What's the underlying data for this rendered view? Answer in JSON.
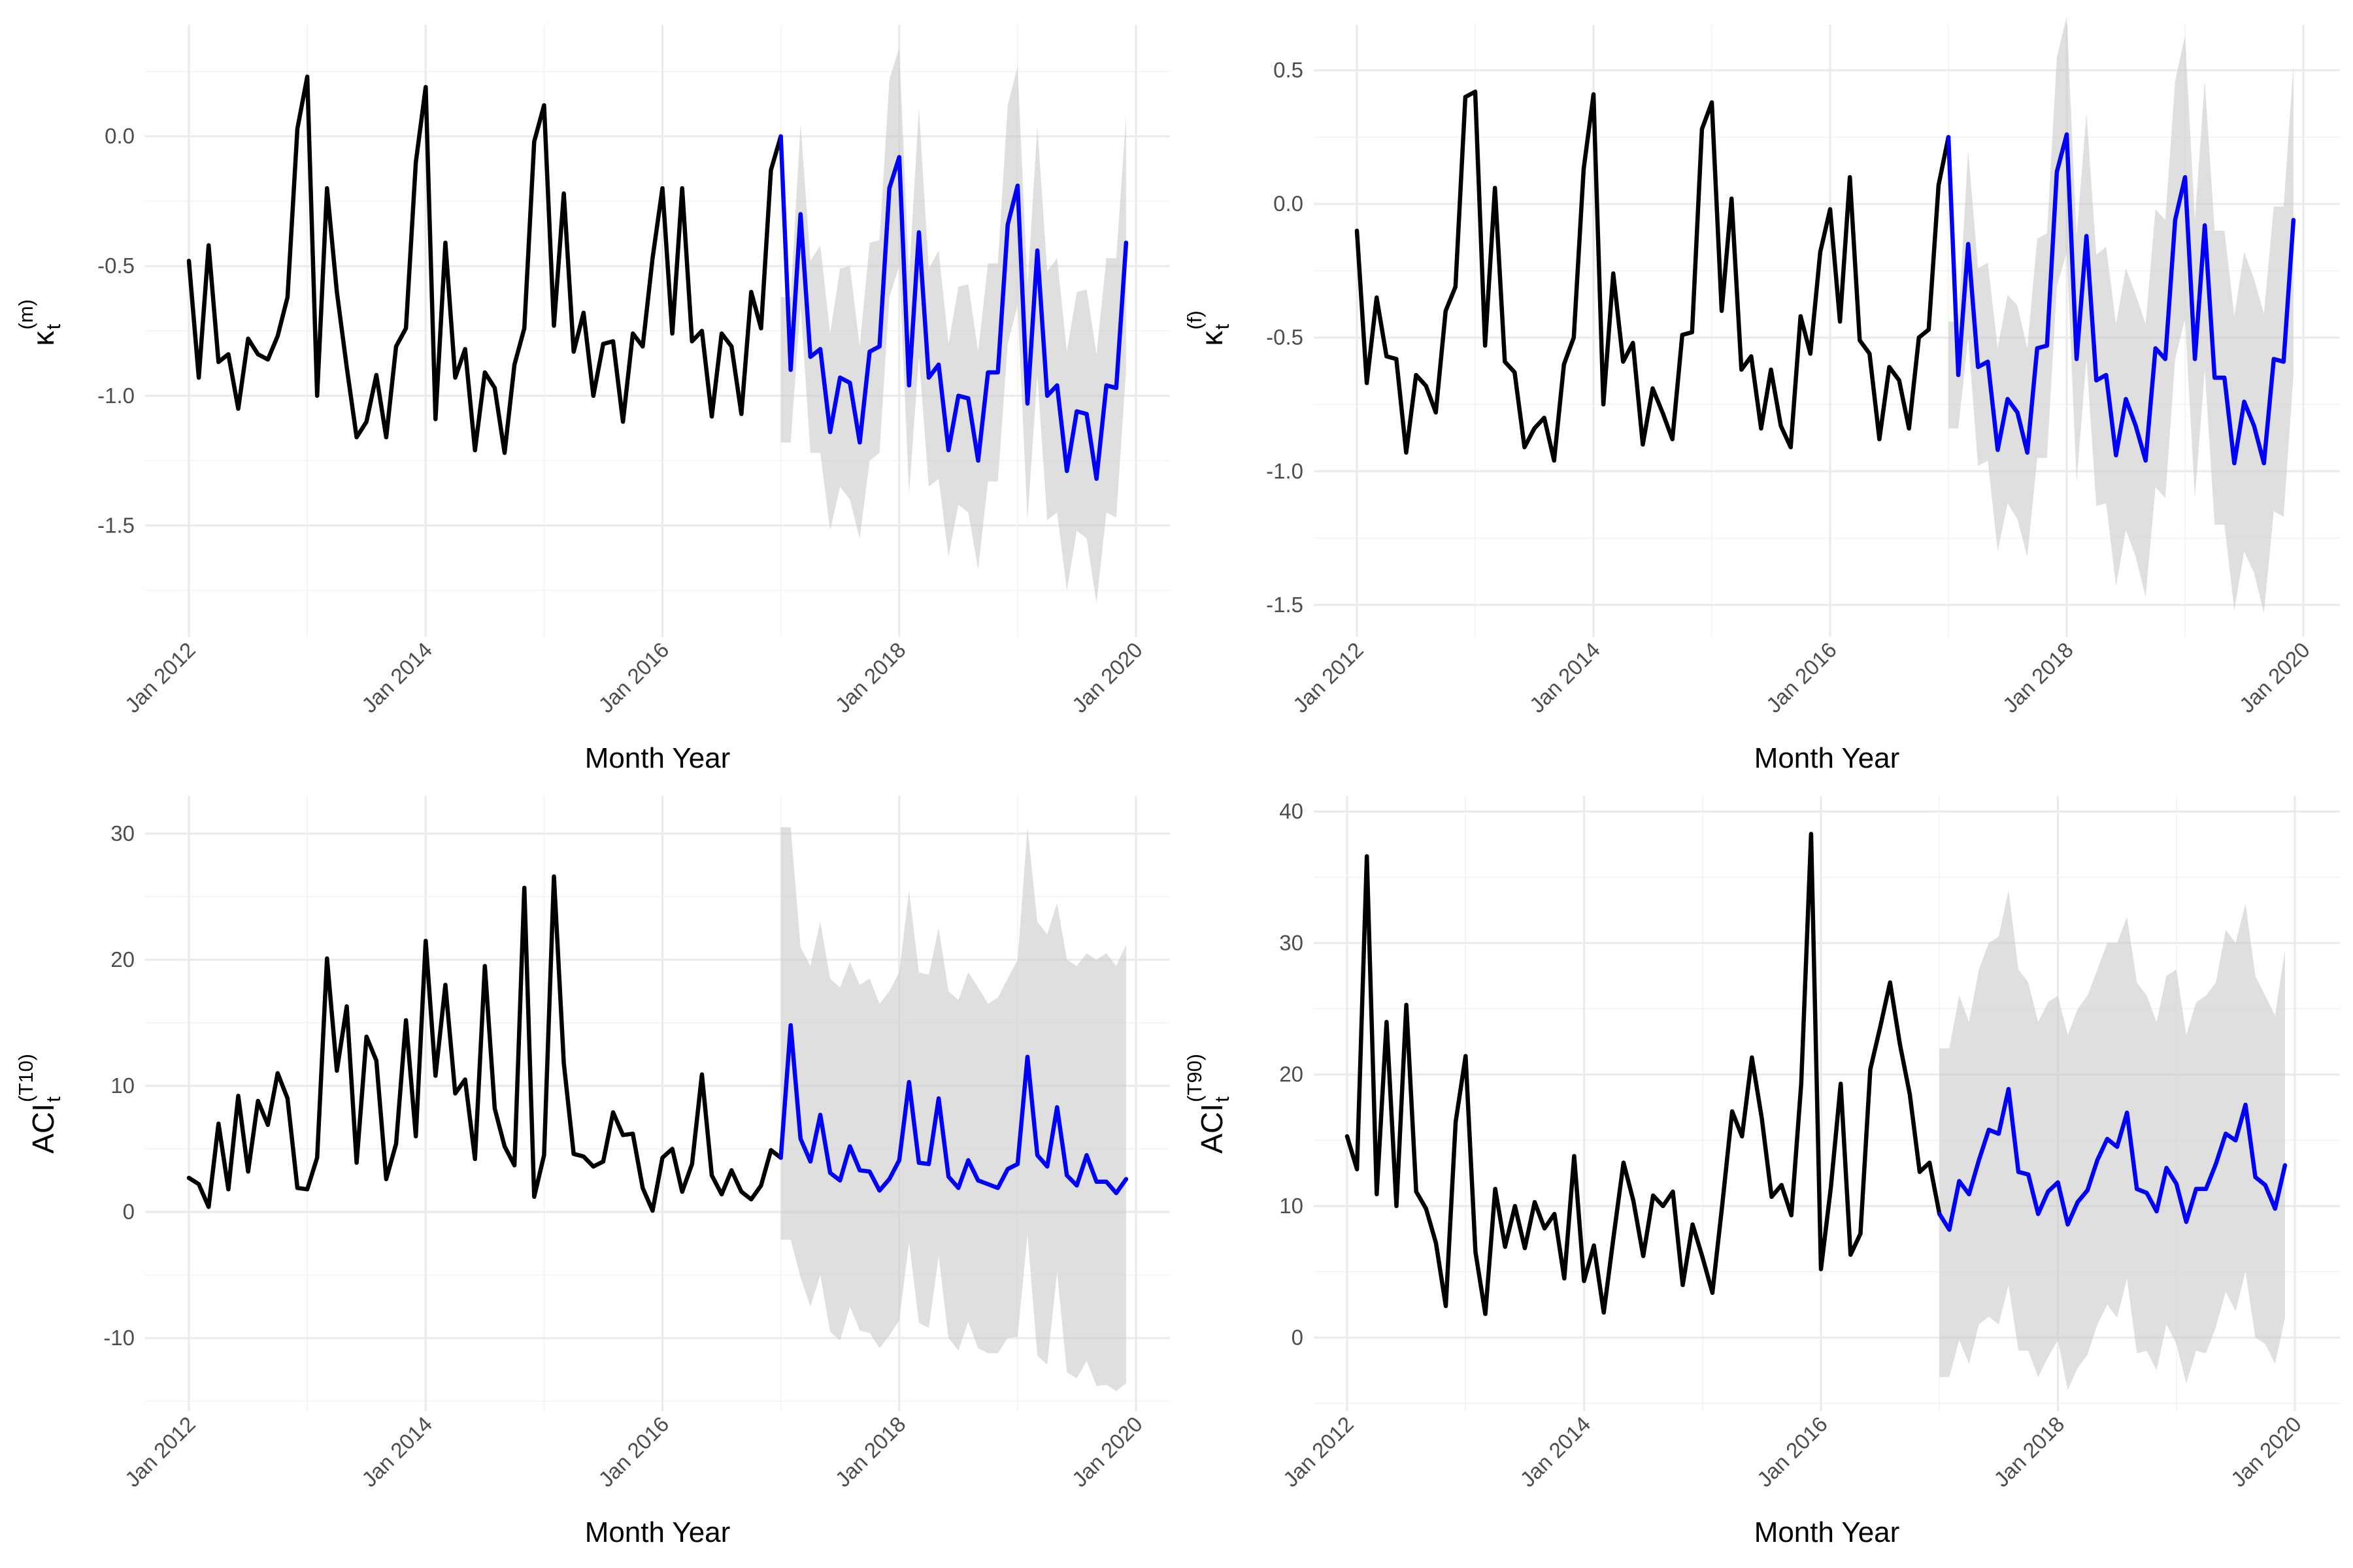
{
  "colors": {
    "history": "#000000",
    "forecast": "#0000ff",
    "ribbon": "#c9c9c9",
    "grid": "#ebebeb",
    "text": "#4d4d4d"
  },
  "chart_data": [
    {
      "type": "line",
      "id": "kappa_m",
      "xlabel": "Month Year",
      "ylabel": {
        "base": "κ",
        "sub": "t",
        "sup": "(m)"
      },
      "ylim": [
        -1.93,
        0.43
      ],
      "yticks": [
        -1.5,
        -1.0,
        -0.5,
        0.0
      ],
      "ytick_labels": [
        "-1.5",
        "-1.0",
        "-0.5",
        "0.0"
      ],
      "xticks": [
        "Jan 2012",
        "Jan 2014",
        "Jan 2016",
        "Jan 2018",
        "Jan 2020"
      ],
      "start": "2012-01",
      "history": [
        -0.48,
        -0.93,
        -0.42,
        -0.87,
        -0.84,
        -1.05,
        -0.78,
        -0.84,
        -0.86,
        -0.77,
        -0.62,
        0.03,
        0.23,
        -1.0,
        -0.2,
        -0.6,
        -0.89,
        -1.16,
        -1.1,
        -0.92,
        -1.16,
        -0.81,
        -0.74,
        -0.1,
        0.19,
        -1.09,
        -0.41,
        -0.93,
        -0.82,
        -1.21,
        -0.91,
        -0.97,
        -1.22,
        -0.88,
        -0.74,
        -0.02,
        0.12,
        -0.73,
        -0.22,
        -0.83,
        -0.68,
        -1.0,
        -0.8,
        -0.79,
        -1.1,
        -0.76,
        -0.81,
        -0.47,
        -0.2,
        -0.76,
        -0.2,
        -0.79,
        -0.75,
        -1.08,
        -0.76,
        -0.81,
        -1.07,
        -0.6,
        -0.74,
        -0.13,
        0.0
      ],
      "forecast": [
        -0.9,
        -0.3,
        -0.85,
        -0.82,
        -1.14,
        -0.93,
        -0.95,
        -1.18,
        -0.83,
        -0.81,
        -0.2,
        -0.08,
        -0.96,
        -0.37,
        -0.93,
        -0.88,
        -1.21,
        -1.0,
        -1.01,
        -1.25,
        -0.91,
        -0.91,
        -0.34,
        -0.19,
        -1.03,
        -0.44,
        -1.0,
        -0.96,
        -1.29,
        -1.06,
        -1.07,
        -1.32,
        -0.96,
        -0.97,
        -0.41
      ],
      "lower": [
        -1.18,
        -0.65,
        -1.22,
        -1.22,
        -1.52,
        -1.35,
        -1.4,
        -1.55,
        -1.25,
        -1.22,
        -0.62,
        -0.5,
        -1.38,
        -0.85,
        -1.35,
        -1.32,
        -1.62,
        -1.42,
        -1.45,
        -1.67,
        -1.33,
        -1.33,
        -0.8,
        -0.65,
        -1.48,
        -0.92,
        -1.48,
        -1.45,
        -1.75,
        -1.52,
        -1.55,
        -1.8,
        -1.45,
        -1.47,
        -0.9
      ],
      "upper": [
        -0.62,
        0.05,
        -0.48,
        -0.42,
        -0.76,
        -0.51,
        -0.5,
        -0.81,
        -0.41,
        -0.4,
        0.22,
        0.34,
        -0.54,
        0.11,
        -0.51,
        -0.44,
        -0.8,
        -0.58,
        -0.57,
        -0.83,
        -0.49,
        -0.49,
        0.12,
        0.27,
        -0.58,
        0.04,
        -0.52,
        -0.47,
        -0.83,
        -0.6,
        -0.59,
        -0.84,
        -0.47,
        -0.47,
        0.08
      ]
    },
    {
      "type": "line",
      "id": "kappa_f",
      "xlabel": "Month Year",
      "ylabel": {
        "base": "κ",
        "sub": "t",
        "sup": "(f)"
      },
      "ylim": [
        -1.62,
        0.67
      ],
      "yticks": [
        -1.5,
        -1.0,
        -0.5,
        0.0,
        0.5
      ],
      "ytick_labels": [
        "-1.5",
        "-1.0",
        "-0.5",
        "0.0",
        "0.5"
      ],
      "xticks": [
        "Jan 2012",
        "Jan 2014",
        "Jan 2016",
        "Jan 2018",
        "Jan 2020"
      ],
      "start": "2012-01",
      "history": [
        -0.1,
        -0.67,
        -0.35,
        -0.57,
        -0.58,
        -0.93,
        -0.64,
        -0.68,
        -0.78,
        -0.4,
        -0.31,
        0.4,
        0.42,
        -0.53,
        0.06,
        -0.59,
        -0.63,
        -0.91,
        -0.84,
        -0.8,
        -0.96,
        -0.6,
        -0.5,
        0.13,
        0.41,
        -0.75,
        -0.26,
        -0.59,
        -0.52,
        -0.9,
        -0.69,
        -0.78,
        -0.88,
        -0.49,
        -0.48,
        0.28,
        0.38,
        -0.4,
        0.02,
        -0.62,
        -0.57,
        -0.84,
        -0.62,
        -0.83,
        -0.91,
        -0.42,
        -0.56,
        -0.18,
        -0.02,
        -0.44,
        0.1,
        -0.51,
        -0.56,
        -0.88,
        -0.61,
        -0.66,
        -0.84,
        -0.5,
        -0.47,
        0.07,
        0.25
      ],
      "forecast": [
        -0.64,
        -0.15,
        -0.61,
        -0.59,
        -0.92,
        -0.73,
        -0.78,
        -0.93,
        -0.54,
        -0.53,
        0.12,
        0.26,
        -0.58,
        -0.12,
        -0.66,
        -0.64,
        -0.94,
        -0.73,
        -0.83,
        -0.96,
        -0.54,
        -0.58,
        -0.06,
        0.1,
        -0.58,
        -0.08,
        -0.65,
        -0.65,
        -0.97,
        -0.74,
        -0.83,
        -0.97,
        -0.58,
        -0.59,
        -0.06
      ],
      "lower": [
        -0.84,
        -0.5,
        -0.98,
        -0.96,
        -1.3,
        -1.12,
        -1.18,
        -1.32,
        -0.95,
        -0.95,
        -0.31,
        -0.18,
        -1.04,
        -0.58,
        -1.13,
        -1.12,
        -1.43,
        -1.22,
        -1.32,
        -1.47,
        -1.06,
        -1.1,
        -0.58,
        -0.43,
        -1.1,
        -0.62,
        -1.2,
        -1.2,
        -1.52,
        -1.3,
        -1.38,
        -1.53,
        -1.15,
        -1.17,
        -0.64
      ],
      "upper": [
        -0.44,
        0.2,
        -0.24,
        -0.22,
        -0.54,
        -0.34,
        -0.38,
        -0.54,
        -0.13,
        -0.11,
        0.55,
        0.7,
        -0.12,
        0.34,
        -0.19,
        -0.16,
        -0.45,
        -0.24,
        -0.34,
        -0.45,
        -0.02,
        -0.06,
        0.46,
        0.63,
        -0.06,
        0.46,
        -0.1,
        -0.1,
        -0.42,
        -0.18,
        -0.28,
        -0.41,
        -0.01,
        -0.01,
        0.52
      ]
    },
    {
      "type": "line",
      "id": "aci_t10",
      "xlabel": "Month Year",
      "ylabel": {
        "base": "ACI",
        "sub": "t",
        "sup": "(T10)"
      },
      "ylim": [
        -15.8,
        33.0
      ],
      "yticks": [
        -10,
        0,
        10,
        20,
        30
      ],
      "ytick_labels": [
        "-10",
        "0",
        "10",
        "20",
        "30"
      ],
      "xticks": [
        "Jan 2012",
        "Jan 2014",
        "Jan 2016",
        "Jan 2018",
        "Jan 2020"
      ],
      "start": "2012-01",
      "history": [
        2.7,
        2.2,
        0.4,
        7.0,
        1.8,
        9.2,
        3.2,
        8.8,
        6.9,
        11.0,
        9.0,
        1.9,
        1.8,
        4.3,
        20.1,
        11.2,
        16.3,
        3.9,
        13.9,
        12.0,
        2.6,
        5.4,
        15.2,
        6.0,
        21.5,
        10.8,
        18.0,
        9.4,
        10.5,
        4.2,
        19.5,
        8.2,
        5.2,
        3.7,
        25.7,
        1.2,
        4.5,
        26.6,
        11.8,
        4.6,
        4.4,
        3.6,
        4.0,
        7.9,
        6.1,
        6.2,
        1.9,
        0.1,
        4.3,
        5.0,
        1.6,
        3.8,
        10.9,
        2.9,
        1.4,
        3.3,
        1.6,
        1.0,
        2.1,
        4.9,
        4.3
      ],
      "forecast": [
        14.8,
        5.8,
        4.0,
        7.7,
        3.1,
        2.5,
        5.2,
        3.3,
        3.2,
        1.7,
        2.6,
        4.1,
        10.3,
        3.9,
        3.8,
        9.0,
        2.8,
        1.9,
        4.1,
        2.5,
        2.2,
        1.9,
        3.4,
        3.8,
        12.3,
        4.5,
        3.6,
        8.3,
        2.9,
        2.1,
        4.5,
        2.4,
        2.4,
        1.5,
        2.6
      ],
      "lower": [
        -2.2,
        -5.2,
        -7.5,
        -5.0,
        -9.5,
        -10.2,
        -7.5,
        -9.4,
        -9.6,
        -10.8,
        -9.8,
        -8.6,
        -2.4,
        -8.8,
        -9.2,
        -3.5,
        -10.0,
        -11.0,
        -8.7,
        -10.8,
        -11.2,
        -11.2,
        -10.0,
        -9.9,
        -1.8,
        -11.4,
        -12.1,
        -4.8,
        -12.7,
        -13.2,
        -11.8,
        -13.8,
        -13.7,
        -14.2,
        -13.6
      ],
      "upper": [
        30.5,
        21.0,
        19.5,
        23.0,
        18.5,
        17.8,
        19.8,
        18.0,
        18.5,
        16.5,
        17.5,
        19.0,
        25.5,
        19.0,
        18.8,
        22.5,
        17.5,
        16.8,
        19.0,
        17.8,
        16.5,
        17.0,
        18.5,
        20.0,
        30.5,
        23.0,
        22.0,
        24.5,
        20.0,
        19.5,
        20.5,
        20.0,
        20.5,
        19.5,
        21.2
      ]
    },
    {
      "type": "line",
      "id": "aci_t90",
      "xlabel": "Month Year",
      "ylabel": {
        "base": "ACI",
        "sub": "t",
        "sup": "(T90)"
      },
      "ylim": [
        -5.6,
        41.2
      ],
      "yticks": [
        0,
        10,
        20,
        30,
        40
      ],
      "ytick_labels": [
        "0",
        "10",
        "20",
        "30",
        "40"
      ],
      "xticks": [
        "Jan 2012",
        "Jan 2014",
        "Jan 2016",
        "Jan 2018",
        "Jan 2020"
      ],
      "start": "2012-01",
      "history": [
        15.3,
        12.8,
        36.6,
        10.9,
        24.0,
        10.0,
        25.3,
        11.1,
        9.8,
        7.2,
        2.4,
        16.4,
        21.4,
        6.5,
        1.8,
        11.3,
        6.9,
        10.0,
        6.8,
        10.3,
        8.3,
        9.4,
        4.5,
        13.8,
        4.3,
        7.0,
        1.9,
        7.7,
        13.3,
        10.4,
        6.2,
        10.8,
        10.0,
        11.1,
        4.0,
        8.6,
        6.1,
        3.4,
        10.1,
        17.2,
        15.3,
        21.3,
        16.7,
        10.7,
        11.6,
        9.3,
        19.3,
        38.3,
        5.2,
        11.4,
        19.3,
        6.3,
        7.9,
        20.4,
        23.6,
        27.0,
        22.3,
        18.5,
        12.6,
        13.3,
        9.4
      ],
      "forecast": [
        8.2,
        11.9,
        10.9,
        13.5,
        15.8,
        15.5,
        18.9,
        12.6,
        12.4,
        9.4,
        11.1,
        11.8,
        8.6,
        10.3,
        11.2,
        13.5,
        15.1,
        14.5,
        17.1,
        11.3,
        11.0,
        9.6,
        12.9,
        11.7,
        8.8,
        11.3,
        11.3,
        13.2,
        15.5,
        15.0,
        17.7,
        12.2,
        11.6,
        9.8,
        13.1
      ],
      "lower": [
        -3.0,
        -0.2,
        -2.0,
        1.0,
        1.6,
        1.0,
        4.0,
        -1.0,
        -1.0,
        -3.0,
        -1.5,
        -0.2,
        -4.0,
        -2.3,
        -1.3,
        1.0,
        2.5,
        1.5,
        4.5,
        -1.2,
        -1.0,
        -2.5,
        1.0,
        -0.5,
        -3.5,
        -1.0,
        -1.2,
        0.8,
        3.5,
        2.0,
        5.0,
        0.0,
        -0.5,
        -2.0,
        1.5
      ],
      "upper": [
        22.0,
        26.0,
        24.0,
        28.0,
        30.0,
        30.5,
        34.0,
        28.0,
        27.0,
        24.0,
        25.5,
        26.0,
        23.0,
        25.0,
        26.0,
        28.0,
        30.0,
        30.0,
        32.0,
        27.0,
        26.0,
        24.0,
        27.5,
        28.0,
        23.0,
        25.5,
        26.0,
        27.0,
        31.0,
        30.0,
        33.0,
        27.5,
        26.0,
        24.5,
        29.5
      ]
    }
  ]
}
